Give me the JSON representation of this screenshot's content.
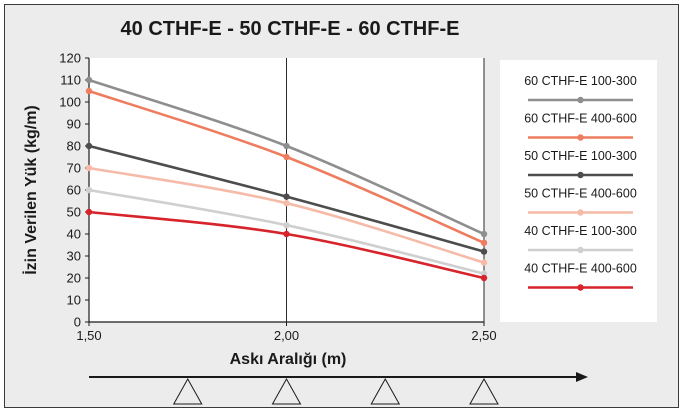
{
  "chart_data": {
    "type": "line",
    "title": "40 CTHF-E - 50 CTHF-E - 60 CTHF-E",
    "xlabel": "Askı Aralığı (m)",
    "ylabel": "İzin Verilen Yük (kg/m)",
    "x": [
      1.5,
      2.0,
      2.5
    ],
    "x_tick_labels": [
      "1,50",
      "2,00",
      "2,50"
    ],
    "xlim": [
      1.5,
      2.5
    ],
    "ylim": [
      0,
      120
    ],
    "y_ticks": [
      0,
      10,
      20,
      30,
      40,
      50,
      60,
      70,
      80,
      90,
      100,
      110,
      120
    ],
    "grid": "vertical",
    "legend_position": "right",
    "series": [
      {
        "name": "60 CTHF-E 100-300",
        "values": [
          110,
          80,
          40
        ],
        "color": "#8e8e8e"
      },
      {
        "name": "60 CTHF-E 400-600",
        "values": [
          105,
          75,
          36
        ],
        "color": "#ee7d5f"
      },
      {
        "name": "50 CTHF-E 100-300",
        "values": [
          80,
          57,
          32
        ],
        "color": "#4d4d4d"
      },
      {
        "name": "50 CTHF-E 400-600",
        "values": [
          70,
          54,
          27
        ],
        "color": "#f5bba8"
      },
      {
        "name": "40 CTHF-E 100-300",
        "values": [
          60,
          44,
          22
        ],
        "color": "#cfcfcf"
      },
      {
        "name": "40 CTHF-E 400-600",
        "values": [
          50,
          40,
          20
        ],
        "color": "#d7232a"
      }
    ]
  }
}
